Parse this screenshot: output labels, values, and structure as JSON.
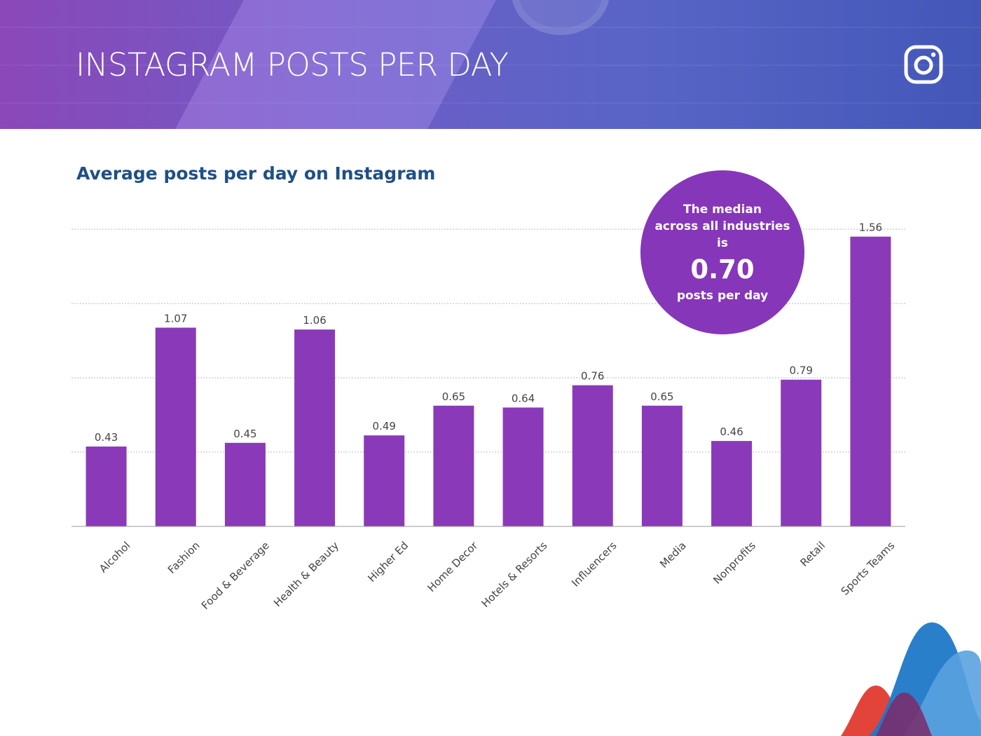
{
  "header": {
    "title": "INSTAGRAM POSTS PER DAY",
    "logo_icon": "instagram-icon"
  },
  "subtitle": "Average posts per day on Instagram",
  "median_callout": {
    "line1": "The median",
    "line2": "across all industries",
    "line3": "is",
    "value": "0.70",
    "line4": "posts per day"
  },
  "colors": {
    "bar": "#8a3ab9",
    "callout": "#8636b8",
    "subtitle": "#1f4f87",
    "gridline": "#bbbbbb"
  },
  "chart_data": {
    "type": "bar",
    "title": "Average posts per day on Instagram",
    "categories": [
      "Alcohol",
      "Fashion",
      "Food & Beverage",
      "Health & Beauty",
      "Higher Ed",
      "Home Decor",
      "Hotels & Resorts",
      "Influencers",
      "Media",
      "Nonprofits",
      "Retail",
      "Sports Teams"
    ],
    "values": [
      0.43,
      1.07,
      0.45,
      1.06,
      0.49,
      0.65,
      0.64,
      0.76,
      0.65,
      0.46,
      0.79,
      1.56
    ],
    "value_labels": [
      "0.43",
      "1.07",
      "0.45",
      "1.06",
      "0.49",
      "0.65",
      "0.64",
      "0.76",
      "0.65",
      "0.46",
      "0.79",
      "1.56"
    ],
    "xlabel": "",
    "ylabel": "",
    "ylim": [
      0,
      1.6
    ],
    "grid": true,
    "legend": "none"
  }
}
